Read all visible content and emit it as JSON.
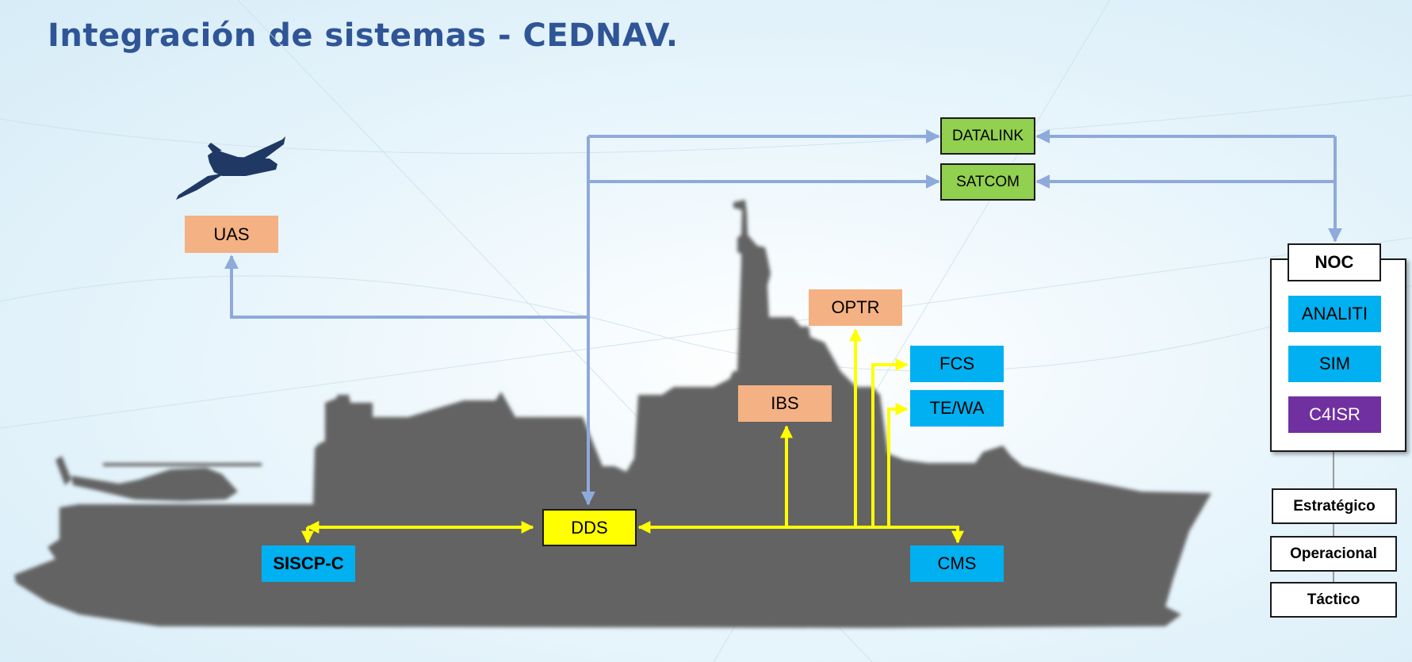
{
  "page": {
    "title": "Integración de sistemas - CEDNAV."
  },
  "colors": {
    "title": "#2f5597",
    "ship": "#646464",
    "blue_link": "#8eaadb",
    "yellow_link": "#ffff00",
    "salmon": "#f4b183",
    "cyan": "#00b0f0",
    "green": "#92d050",
    "purple": "#7030a0"
  },
  "icons": {
    "drone": "uav-drone-icon",
    "ship": "ship-silhouette",
    "helicopter": "helicopter-icon"
  },
  "nodes": {
    "datalink": "DATALINK",
    "satcom": "SATCOM",
    "uas": "UAS",
    "optr": "OPTR",
    "fcs": "FCS",
    "tewa": "TE/WA",
    "ibs": "IBS",
    "dds": "DDS",
    "siscp": "SISCP-C",
    "cms": "CMS"
  },
  "noc": {
    "title": "NOC",
    "items": [
      "ANALITI",
      "SIM",
      "C4ISR"
    ],
    "levels": [
      "Estratégico",
      "Operacional",
      "Táctico"
    ]
  }
}
